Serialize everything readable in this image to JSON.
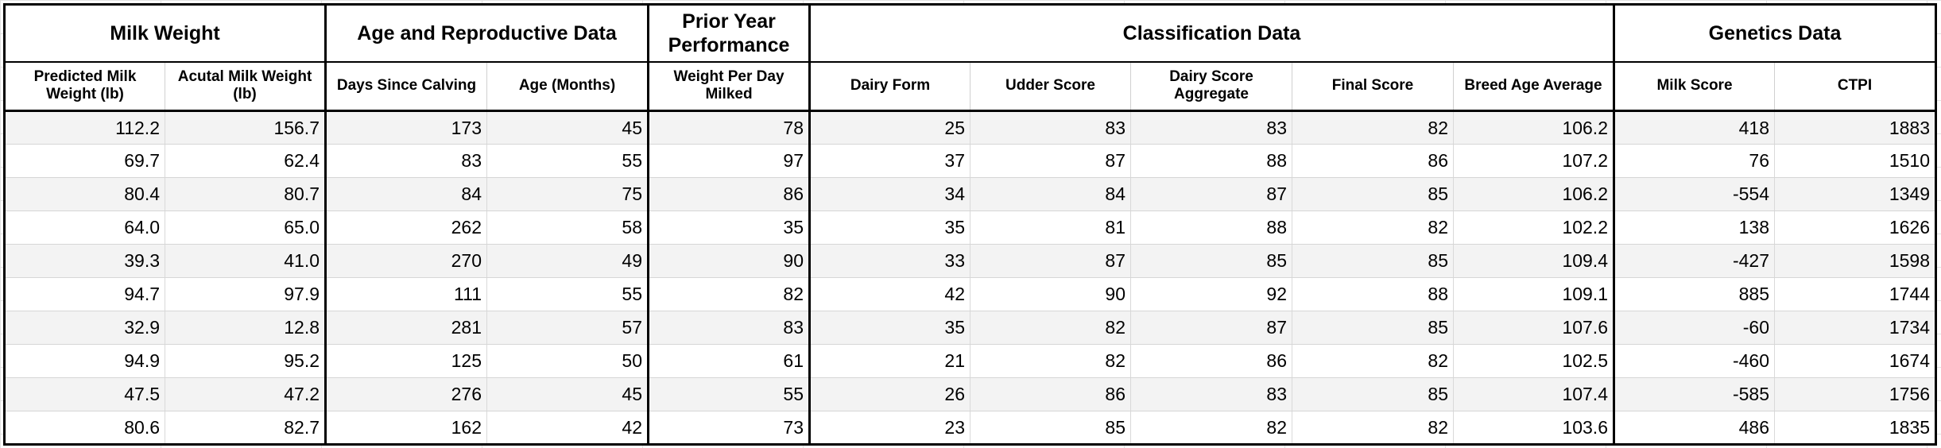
{
  "groups": [
    {
      "label": "Milk Weight",
      "span": 2
    },
    {
      "label": "Age and Reproductive Data",
      "span": 2
    },
    {
      "label": "Prior Year Performance",
      "span": 1
    },
    {
      "label": "Classification Data",
      "span": 5
    },
    {
      "label": "Genetics Data",
      "span": 2
    }
  ],
  "columns": [
    "Predicted Milk Weight (lb)",
    "Acutal Milk Weight (lb)",
    "Days Since Calving",
    "Age (Months)",
    "Weight Per Day Milked",
    "Dairy Form",
    "Udder Score",
    "Dairy Score Aggregate",
    "Final Score",
    "Breed Age Average",
    "Milk Score",
    "CTPI"
  ],
  "rows": [
    [
      "112.2",
      "156.7",
      "173",
      "45",
      "78",
      "25",
      "83",
      "83",
      "82",
      "106.2",
      "418",
      "1883"
    ],
    [
      "69.7",
      "62.4",
      "83",
      "55",
      "97",
      "37",
      "87",
      "88",
      "86",
      "107.2",
      "76",
      "1510"
    ],
    [
      "80.4",
      "80.7",
      "84",
      "75",
      "86",
      "34",
      "84",
      "87",
      "85",
      "106.2",
      "-554",
      "1349"
    ],
    [
      "64.0",
      "65.0",
      "262",
      "58",
      "35",
      "35",
      "81",
      "88",
      "82",
      "102.2",
      "138",
      "1626"
    ],
    [
      "39.3",
      "41.0",
      "270",
      "49",
      "90",
      "33",
      "87",
      "85",
      "85",
      "109.4",
      "-427",
      "1598"
    ],
    [
      "94.7",
      "97.9",
      "111",
      "55",
      "82",
      "42",
      "90",
      "92",
      "88",
      "109.1",
      "885",
      "1744"
    ],
    [
      "32.9",
      "12.8",
      "281",
      "57",
      "83",
      "35",
      "82",
      "87",
      "85",
      "107.6",
      "-60",
      "1734"
    ],
    [
      "94.9",
      "95.2",
      "125",
      "50",
      "61",
      "21",
      "82",
      "86",
      "82",
      "102.5",
      "-460",
      "1674"
    ],
    [
      "47.5",
      "47.2",
      "276",
      "45",
      "55",
      "26",
      "86",
      "83",
      "85",
      "107.4",
      "-585",
      "1756"
    ],
    [
      "80.6",
      "82.7",
      "162",
      "42",
      "73",
      "23",
      "85",
      "82",
      "82",
      "103.6",
      "486",
      "1835"
    ]
  ]
}
